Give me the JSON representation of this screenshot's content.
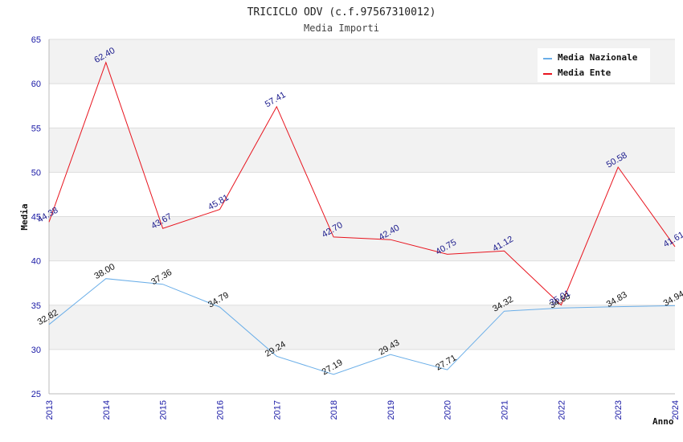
{
  "chart_data": {
    "type": "line",
    "title": "TRICICLO ODV (c.f.97567310012)",
    "subtitle": "Media Importi",
    "ylabel": "Media",
    "xlabel": "Anno",
    "ylim": [
      25,
      65
    ],
    "yticks": [
      25,
      30,
      35,
      40,
      45,
      50,
      55,
      60,
      65
    ],
    "categories": [
      "2013",
      "2014",
      "2015",
      "2016",
      "2017",
      "2018",
      "2019",
      "2020",
      "2021",
      "2022",
      "2023",
      "2024"
    ],
    "legend_position": "top-right",
    "series": [
      {
        "name": "Media Nazionale",
        "color": "#6aaee8",
        "values": [
          32.82,
          38.0,
          37.36,
          34.79,
          29.24,
          27.19,
          29.43,
          27.71,
          34.32,
          34.68,
          34.83,
          34.94
        ],
        "labels": [
          "32.82",
          "38.00",
          "37.36",
          "34.79",
          "29.24",
          "27.19",
          "29.43",
          "27.71",
          "34.32",
          "34.68",
          "34.83",
          "34.94"
        ]
      },
      {
        "name": "Media Ente",
        "color": "#e8141e",
        "values": [
          44.38,
          62.4,
          43.67,
          45.81,
          57.41,
          42.7,
          42.4,
          40.75,
          41.12,
          35.01,
          50.58,
          41.61
        ],
        "labels": [
          "44.38",
          "62.40",
          "43.67",
          "45.81",
          "57.41",
          "42.70",
          "42.40",
          "40.75",
          "41.12",
          "35.01",
          "50.58",
          "41.61"
        ]
      }
    ]
  }
}
